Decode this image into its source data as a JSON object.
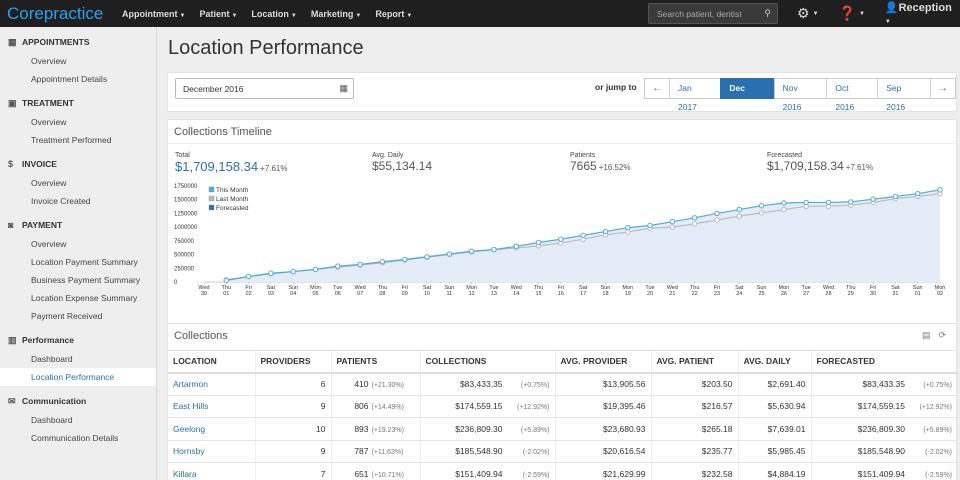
{
  "nav": {
    "brand": "Corepractice",
    "menu": [
      "Appointment",
      "Patient",
      "Location",
      "Marketing",
      "Report"
    ],
    "search_placeholder": "Search patient, dentist",
    "user": "Reception"
  },
  "sidebar": {
    "sections": [
      {
        "title": "APPOINTMENTS",
        "icon": "calendar-icon",
        "items": [
          "Overview",
          "Appointment Details"
        ]
      },
      {
        "title": "TREATMENT",
        "icon": "briefcase-icon",
        "items": [
          "Overview",
          "Treatment Performed"
        ]
      },
      {
        "title": "INVOICE",
        "icon": "dollar-icon",
        "items": [
          "Overview",
          "Invoice Created"
        ]
      },
      {
        "title": "PAYMENT",
        "icon": "money-icon",
        "items": [
          "Overview",
          "Location Payment Summary",
          "Business Payment Summary",
          "Location Expense Summary",
          "Payment Received"
        ]
      },
      {
        "title": "Performance",
        "icon": "bar-chart-icon",
        "items": [
          "Dashboard",
          "Location Performance"
        ]
      },
      {
        "title": "Communication",
        "icon": "comments-icon",
        "items": [
          "Dashboard",
          "Communication Details"
        ]
      }
    ],
    "active_item": "Location Performance"
  },
  "page": {
    "title": "Location Performance"
  },
  "filter": {
    "date_value": "December 2016",
    "jump_label": "or jump to",
    "months": [
      "Jan 2017",
      "Dec 2016",
      "Nov 2016",
      "Oct 2016",
      "Sep 2016"
    ],
    "active_month": "Dec 2016"
  },
  "timeline": {
    "title": "Collections Timeline",
    "stats": {
      "total": {
        "label": "Total",
        "value": "$1,709,158.34",
        "change": "+7.61%"
      },
      "avg_daily": {
        "label": "Avg. Daily",
        "value": "$55,134.14"
      },
      "patients": {
        "label": "Patients",
        "value": "7665",
        "change": "+16.52%"
      },
      "forecasted": {
        "label": "Forecasted",
        "value": "$1,709,158.34",
        "change": "+7.61%"
      }
    }
  },
  "chart_data": {
    "type": "line",
    "title": "",
    "ylim": [
      0,
      1750000
    ],
    "yticks": [
      "1750000",
      "1500000",
      "1250000",
      "1000000",
      "750000",
      "500000",
      "250000",
      "0"
    ],
    "x_days": [
      "Wed",
      "Thu",
      "Fri",
      "Sat",
      "Sun",
      "Mon",
      "Tue",
      "Wed",
      "Thu",
      "Fri",
      "Sat",
      "Sun",
      "Mon",
      "Tue",
      "Wed",
      "Thu",
      "Fri",
      "Sat",
      "Sun",
      "Mon",
      "Tue",
      "Wed",
      "Thu",
      "Fri",
      "Sat",
      "Sun",
      "Mon",
      "Tue",
      "Wed",
      "Thu",
      "Fri",
      "Sat",
      "Sun",
      "Mon"
    ],
    "x_dates": [
      "30",
      "01",
      "02",
      "03",
      "04",
      "05",
      "06",
      "07",
      "08",
      "09",
      "10",
      "11",
      "12",
      "13",
      "14",
      "15",
      "16",
      "17",
      "18",
      "19",
      "20",
      "21",
      "22",
      "23",
      "24",
      "25",
      "26",
      "27",
      "28",
      "29",
      "30",
      "31",
      "01",
      "02"
    ],
    "legend": [
      "This Month",
      "Last Month",
      "Forecasted"
    ],
    "series": [
      {
        "name": "This Month",
        "color": "#4fa8e0",
        "values": [
          null,
          30000,
          100000,
          160000,
          190000,
          230000,
          290000,
          320000,
          370000,
          410000,
          460000,
          510000,
          560000,
          590000,
          650000,
          720000,
          780000,
          850000,
          920000,
          990000,
          1030000,
          1100000,
          1170000,
          1250000,
          1320000,
          1390000,
          1440000,
          1450000,
          1450000,
          1460000,
          1510000,
          1560000,
          1610000,
          1680000
        ]
      },
      {
        "name": "Last Month",
        "color": "#bbbbbb",
        "values": [
          null,
          40000,
          100000,
          150000,
          190000,
          230000,
          270000,
          310000,
          350000,
          400000,
          450000,
          500000,
          550000,
          590000,
          620000,
          660000,
          710000,
          780000,
          860000,
          910000,
          980000,
          1000000,
          1060000,
          1130000,
          1200000,
          1260000,
          1320000,
          1380000,
          1380000,
          1400000,
          1450000,
          1520000,
          1560000,
          1610000
        ]
      }
    ]
  },
  "collections": {
    "title": "Collections",
    "headers": [
      "LOCATION",
      "PROVIDERS",
      "PATIENTS",
      "COLLECTIONS",
      "AVG. PROVIDER",
      "AVG. PATIENT",
      "AVG. DAILY",
      "FORECASTED"
    ],
    "rows": [
      {
        "location": "Artarmon",
        "providers": "6",
        "patients": "410",
        "patients_pct": "(+21.30%)",
        "collections": "$83,433.35",
        "collections_pct": "(+0.75%)",
        "avg_provider": "$13,905.56",
        "avg_patient": "$203.50",
        "avg_daily": "$2,691.40",
        "forecasted": "$83,433.35",
        "forecasted_pct": "(+0.75%)"
      },
      {
        "location": "East Hills",
        "providers": "9",
        "patients": "806",
        "patients_pct": "(+14.49%)",
        "collections": "$174,559.15",
        "collections_pct": "(+12.92%)",
        "avg_provider": "$19,395.46",
        "avg_patient": "$216.57",
        "avg_daily": "$5,630.94",
        "forecasted": "$174,559.15",
        "forecasted_pct": "(+12.92%)"
      },
      {
        "location": "Geelong",
        "providers": "10",
        "patients": "893",
        "patients_pct": "(+19.23%)",
        "collections": "$236,809.30",
        "collections_pct": "(+5.89%)",
        "avg_provider": "$23,680.93",
        "avg_patient": "$265.18",
        "avg_daily": "$7,639.01",
        "forecasted": "$236,809.30",
        "forecasted_pct": "(+5.89%)"
      },
      {
        "location": "Hornsby",
        "providers": "9",
        "patients": "787",
        "patients_pct": "(+11.63%)",
        "collections": "$185,548.90",
        "collections_pct": "(-2.02%)",
        "avg_provider": "$20,616.54",
        "avg_patient": "$235.77",
        "avg_daily": "$5,985.45",
        "forecasted": "$185,548.90",
        "forecasted_pct": "(-2.02%)"
      },
      {
        "location": "Killara",
        "providers": "7",
        "patients": "651",
        "patients_pct": "(+10.71%)",
        "collections": "$151,409.94",
        "collections_pct": "(-2.59%)",
        "avg_provider": "$21,629.99",
        "avg_patient": "$232.58",
        "avg_daily": "$4,884.19",
        "forecasted": "$151,409.94",
        "forecasted_pct": "(-2.59%)"
      }
    ]
  }
}
